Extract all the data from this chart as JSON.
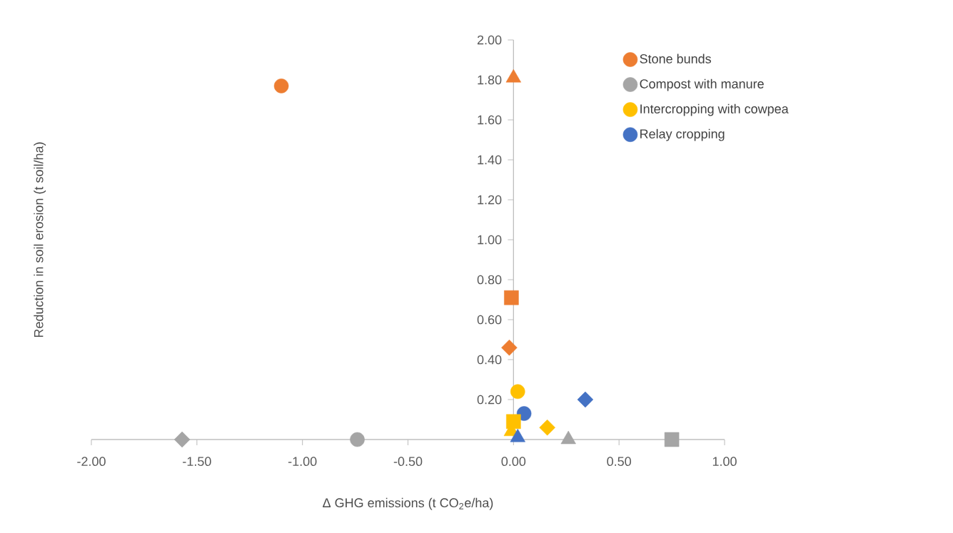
{
  "chart_data": {
    "type": "scatter",
    "xlabel": "Δ GHG emissions (t CO$_{2}$e/ha)",
    "ylabel": "Reduction in soil erosion (t soil/ha)",
    "xlim": [
      -2,
      1
    ],
    "ylim": [
      0,
      2
    ],
    "xticks": [
      {
        "value": -2,
        "label": "-2.00"
      },
      {
        "value": -1.5,
        "label": "-1.50"
      },
      {
        "value": -1,
        "label": "-1.00"
      },
      {
        "value": -0.5,
        "label": "-0.50"
      },
      {
        "value": 0,
        "label": "0.00"
      },
      {
        "value": 0.5,
        "label": "0.50"
      },
      {
        "value": 1,
        "label": "1.00"
      }
    ],
    "yticks": [
      {
        "value": 0.2,
        "label": "0.20"
      },
      {
        "value": 0.4,
        "label": "0.40"
      },
      {
        "value": 0.6,
        "label": "0.60"
      },
      {
        "value": 0.8,
        "label": "0.80"
      },
      {
        "value": 1.0,
        "label": "1.00"
      },
      {
        "value": 1.2,
        "label": "1.20"
      },
      {
        "value": 1.4,
        "label": "1.40"
      },
      {
        "value": 1.6,
        "label": "1.60"
      },
      {
        "value": 1.8,
        "label": "1.80"
      },
      {
        "value": 2.0,
        "label": "2.00"
      }
    ],
    "grid": false,
    "legend": "top right",
    "series": [
      {
        "name": "Stone bunds",
        "color": "#ed7d31",
        "marker": "circle",
        "x": [
          -1.1
        ],
        "values": [
          1.77
        ]
      },
      {
        "name": "Compost with manure",
        "color": "#a5a5a5",
        "marker": "circle",
        "x": [
          -0.74
        ],
        "values": [
          0
        ]
      },
      {
        "name": "Intercropping with cowpea",
        "color": "#ffc000",
        "marker": "circle",
        "x": [
          0.02
        ],
        "values": [
          0.24
        ]
      },
      {
        "name": "Relay cropping",
        "color": "#4472c4",
        "marker": "circle",
        "x": [
          0.05
        ],
        "values": [
          0.13
        ]
      },
      {
        "color": "#ed7d31",
        "marker": "triangle",
        "x": [
          0.0
        ],
        "values": [
          1.81
        ]
      },
      {
        "color": "#ed7d31",
        "marker": "square",
        "x": [
          -0.01
        ],
        "values": [
          0.71
        ]
      },
      {
        "color": "#ed7d31",
        "marker": "diamond",
        "x": [
          -0.02
        ],
        "values": [
          0.46
        ]
      },
      {
        "color": "#a5a5a5",
        "marker": "diamond",
        "x": [
          -1.57
        ],
        "values": [
          0
        ]
      },
      {
        "color": "#a5a5a5",
        "marker": "triangle",
        "x": [
          0.26
        ],
        "values": [
          0
        ]
      },
      {
        "color": "#a5a5a5",
        "marker": "square",
        "x": [
          0.75
        ],
        "values": [
          0
        ]
      },
      {
        "color": "#ffc000",
        "marker": "triangle",
        "x": [
          -0.01
        ],
        "values": [
          0.04
        ]
      },
      {
        "color": "#ffc000",
        "marker": "square",
        "x": [
          0.0
        ],
        "values": [
          0.09
        ]
      },
      {
        "color": "#ffc000",
        "marker": "diamond",
        "x": [
          0.16
        ],
        "values": [
          0.06
        ]
      },
      {
        "color": "#4472c4",
        "marker": "diamond",
        "x": [
          0.34
        ],
        "values": [
          0.2
        ]
      },
      {
        "color": "#4472c4",
        "marker": "triangle",
        "x": [
          0.02
        ],
        "values": [
          0.01
        ]
      }
    ]
  }
}
